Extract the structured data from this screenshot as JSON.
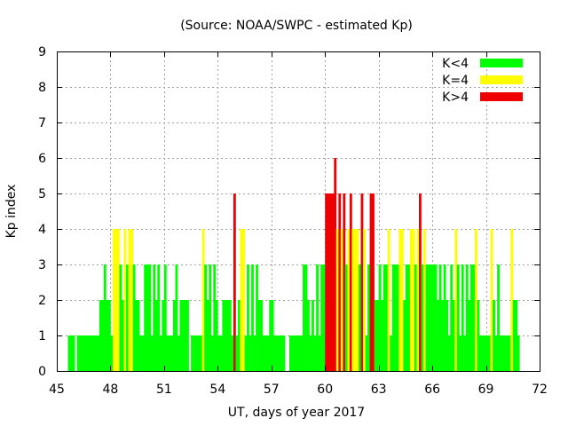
{
  "chart_data": {
    "type": "bar",
    "title": "(Source: NOAA/SWPC - estimated Kp)",
    "xlabel": "UT, days of year 2017",
    "ylabel": "Kp index",
    "xlim": [
      45,
      72
    ],
    "ylim": [
      0,
      9
    ],
    "xticks": [
      "45",
      "48",
      "51",
      "54",
      "57",
      "60",
      "63",
      "66",
      "69",
      "72"
    ],
    "yticks": [
      "0",
      "1",
      "2",
      "3",
      "4",
      "5",
      "6",
      "7",
      "8",
      "9"
    ],
    "bin_width_days": 0.125,
    "start_day": 45.625,
    "grid": true,
    "legend_position": "top-right",
    "legend": [
      {
        "label": "K<4",
        "color": "#00ff00"
      },
      {
        "label": "K=4",
        "color": "#ffff00"
      },
      {
        "label": "K>4",
        "color": "#ee0000"
      }
    ],
    "colors": {
      "low": "#00ff00",
      "mid": "#ffff00",
      "high": "#ee0000"
    },
    "values": [
      1,
      1,
      1,
      0,
      1,
      1,
      1,
      1,
      1,
      1,
      1,
      1,
      1,
      1,
      2,
      2,
      3,
      2,
      2,
      1,
      4,
      4,
      4,
      3,
      2,
      4,
      3,
      4,
      4,
      3,
      2,
      2,
      1,
      1,
      3,
      3,
      3,
      1,
      3,
      2,
      3,
      1,
      2,
      3,
      1,
      1,
      1,
      2,
      3,
      1,
      2,
      2,
      2,
      2,
      0,
      1,
      1,
      1,
      1,
      1,
      4,
      3,
      2,
      3,
      1,
      3,
      2,
      1,
      1,
      2,
      2,
      2,
      2,
      1,
      5,
      1,
      2,
      4,
      4,
      1,
      3,
      1,
      3,
      1,
      3,
      2,
      2,
      1,
      1,
      1,
      2,
      2,
      1,
      1,
      1,
      1,
      1,
      0,
      0,
      1,
      1,
      1,
      1,
      1,
      1,
      3,
      3,
      2,
      1,
      2,
      1,
      3,
      1,
      3,
      3,
      5,
      5,
      5,
      5,
      6,
      4,
      5,
      4,
      5,
      3,
      4,
      5,
      4,
      4,
      4,
      3,
      5,
      4,
      1,
      3,
      5,
      5,
      2,
      2,
      3,
      2,
      3,
      3,
      4,
      1,
      3,
      3,
      3,
      4,
      4,
      2,
      3,
      3,
      4,
      4,
      3,
      4,
      5,
      3,
      4,
      3,
      3,
      3,
      3,
      3,
      2,
      3,
      2,
      3,
      2,
      1,
      3,
      2,
      4,
      3,
      1,
      3,
      1,
      3,
      2,
      3,
      3,
      4,
      2,
      1,
      1,
      1,
      1,
      1,
      4,
      2,
      1,
      3,
      1,
      1,
      1,
      1,
      1,
      4,
      2,
      2,
      1
    ]
  }
}
